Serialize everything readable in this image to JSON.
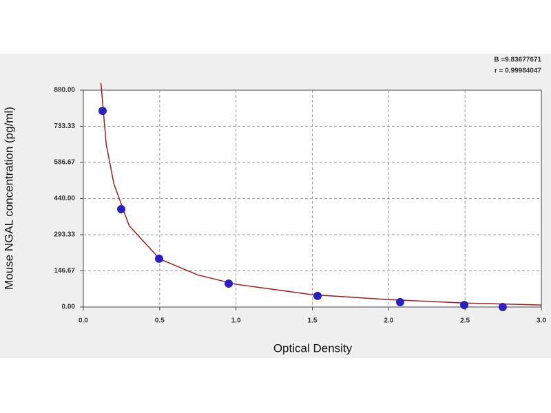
{
  "chart_data": {
    "type": "scatter",
    "xlabel": "Optical Density",
    "ylabel": "Mouse NGAL   concentration (pg/ml)",
    "annotations": [
      "B =9.83677671",
      "r = 0.99984047"
    ],
    "xlim": [
      0,
      3
    ],
    "ylim": [
      0,
      880
    ],
    "xticks": [
      {
        "value": 0,
        "label": "0.0"
      },
      0.5,
      {
        "value": 1,
        "label": "1.0"
      },
      1.5,
      {
        "value": 2,
        "label": "2.0"
      },
      2.5,
      {
        "value": 3,
        "label": "3.0"
      }
    ],
    "yticks": [
      {
        "value": 0,
        "label": "0.00"
      },
      {
        "value": 146.67,
        "label": "146.67"
      },
      {
        "value": 293.33,
        "label": "293.33"
      },
      {
        "value": 440,
        "label": "440.00"
      },
      {
        "value": 586.67,
        "label": "586.67"
      },
      {
        "value": 733.33,
        "label": "733.33"
      },
      {
        "value": 880,
        "label": "880.00"
      }
    ],
    "grid": true,
    "series": [
      {
        "color": "#2a1fc4",
        "mode": "markers",
        "x": [
          0.126,
          0.248,
          0.496,
          0.952,
          1.534,
          2.075,
          2.495,
          2.747
        ],
        "values": [
          796,
          397,
          196,
          95,
          45,
          20,
          8,
          0
        ]
      },
      {
        "color": "#a01c1c",
        "mode": "line",
        "x": [
          0.115,
          0.15,
          0.2,
          0.3,
          0.5,
          0.75,
          1.0,
          1.5,
          2.0,
          2.5,
          3.0
        ],
        "values": [
          910,
          660,
          500,
          330,
          195,
          130,
          92,
          50,
          30,
          16,
          8
        ]
      }
    ]
  }
}
